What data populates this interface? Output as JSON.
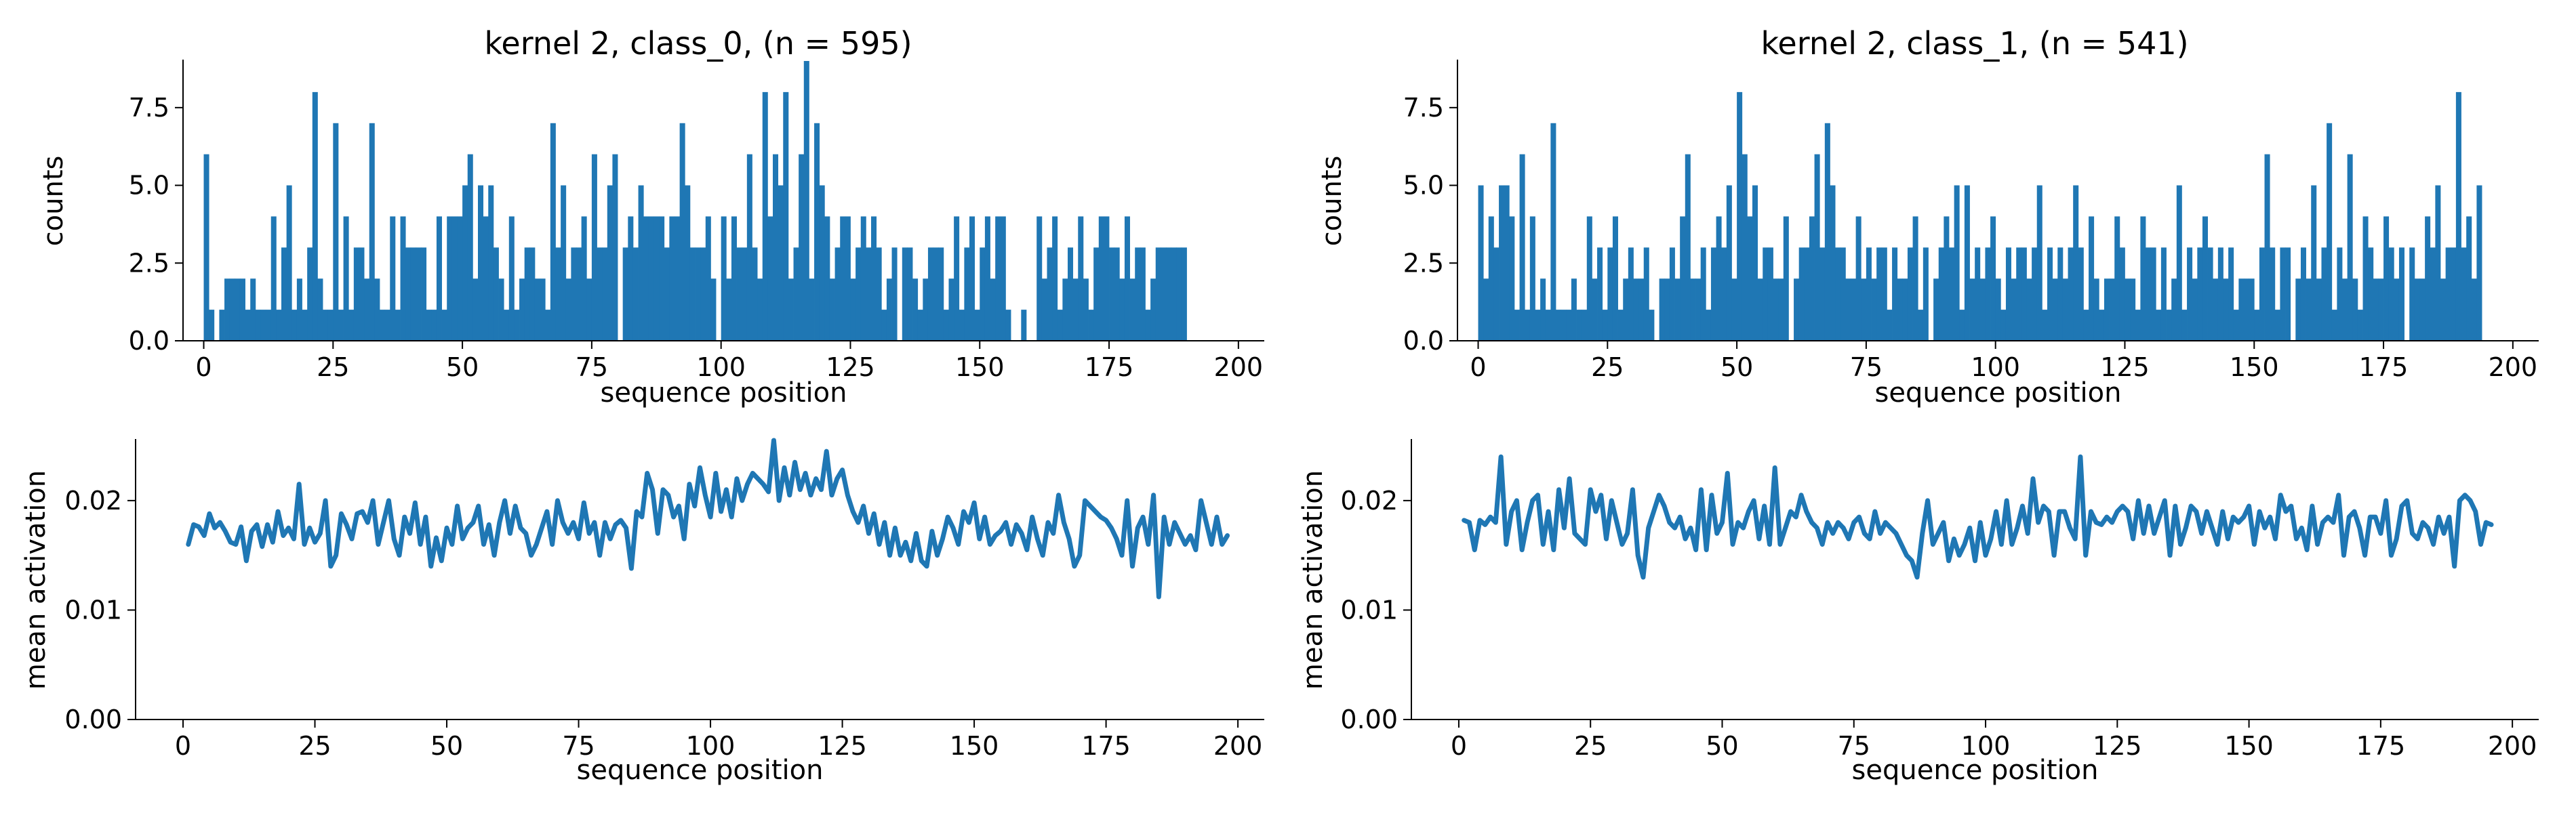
{
  "chart_data": [
    {
      "id": "hist0",
      "type": "bar",
      "title": "kernel 2, class_0, (n = 595)",
      "xlabel": "sequence position",
      "ylabel": "counts",
      "xlim": [
        -4,
        205
      ],
      "ylim": [
        0,
        9
      ],
      "xticks": [
        0,
        25,
        50,
        75,
        100,
        125,
        150,
        175,
        200
      ],
      "yticks": [
        0.0,
        2.5,
        5.0,
        7.5
      ],
      "xtick_labels": [
        "0",
        "25",
        "50",
        "75",
        "100",
        "125",
        "150",
        "175",
        "200"
      ],
      "ytick_labels": [
        "0.0",
        "2.5",
        "5.0",
        "7.5"
      ],
      "bar_color": "#1f77b4",
      "x_start": 0,
      "bin_width": 1,
      "values": [
        6,
        1,
        0,
        1,
        2,
        2,
        2,
        2,
        1,
        2,
        1,
        1,
        1,
        4,
        1,
        3,
        5,
        1,
        2,
        1,
        3,
        8,
        2,
        1,
        1,
        7,
        1,
        4,
        1,
        3,
        3,
        2,
        7,
        2,
        1,
        1,
        4,
        1,
        4,
        3,
        3,
        3,
        3,
        1,
        1,
        4,
        1,
        4,
        4,
        4,
        5,
        6,
        2,
        5,
        4,
        5,
        3,
        2,
        1,
        4,
        1,
        2,
        3,
        3,
        2,
        2,
        1,
        7,
        3,
        5,
        2,
        3,
        3,
        4,
        2,
        6,
        3,
        3,
        5,
        6,
        0,
        3,
        4,
        3,
        5,
        4,
        4,
        4,
        4,
        3,
        4,
        4,
        7,
        5,
        3,
        3,
        3,
        4,
        2,
        0,
        4,
        2,
        4,
        3,
        3,
        6,
        3,
        2,
        8,
        4,
        6,
        5,
        8,
        2,
        3,
        6,
        9,
        2,
        7,
        5,
        4,
        2,
        3,
        4,
        4,
        2,
        3,
        4,
        3,
        4,
        3,
        1,
        2,
        3,
        0,
        3,
        3,
        2,
        1,
        2,
        3,
        3,
        3,
        1,
        2,
        4,
        1,
        3,
        4,
        1,
        3,
        4,
        2,
        4,
        4,
        1,
        0,
        0,
        1,
        0,
        0,
        4,
        2,
        3,
        4,
        1,
        2,
        3,
        2,
        4,
        2,
        1,
        3,
        4,
        4,
        3,
        3,
        2,
        4,
        2,
        3,
        3,
        1,
        2,
        3,
        3,
        3,
        3,
        3,
        3
      ]
    },
    {
      "id": "hist1",
      "type": "bar",
      "title": "kernel 2, class_1, (n = 541)",
      "xlabel": "sequence position",
      "ylabel": "counts",
      "xlim": [
        -4,
        205
      ],
      "ylim": [
        0,
        9
      ],
      "xticks": [
        0,
        25,
        50,
        75,
        100,
        125,
        150,
        175,
        200
      ],
      "yticks": [
        0.0,
        2.5,
        5.0,
        7.5
      ],
      "xtick_labels": [
        "0",
        "25",
        "50",
        "75",
        "100",
        "125",
        "150",
        "175",
        "200"
      ],
      "ytick_labels": [
        "0.0",
        "2.5",
        "5.0",
        "7.5"
      ],
      "bar_color": "#1f77b4",
      "x_start": 0,
      "bin_width": 1,
      "values": [
        5,
        2,
        4,
        3,
        5,
        5,
        4,
        1,
        6,
        1,
        4,
        1,
        2,
        1,
        7,
        1,
        1,
        1,
        2,
        1,
        1,
        4,
        2,
        3,
        1,
        3,
        4,
        1,
        2,
        3,
        2,
        2,
        3,
        1,
        0,
        2,
        2,
        3,
        2,
        4,
        6,
        2,
        2,
        3,
        1,
        3,
        4,
        3,
        5,
        2,
        8,
        6,
        4,
        5,
        2,
        3,
        3,
        2,
        2,
        4,
        0,
        2,
        3,
        3,
        4,
        6,
        3,
        7,
        5,
        3,
        3,
        2,
        2,
        4,
        2,
        3,
        2,
        3,
        3,
        1,
        3,
        2,
        2,
        3,
        4,
        1,
        3,
        0,
        2,
        3,
        4,
        3,
        5,
        1,
        5,
        2,
        3,
        2,
        3,
        4,
        2,
        1,
        3,
        2,
        3,
        3,
        2,
        3,
        5,
        1,
        3,
        2,
        3,
        2,
        3,
        5,
        3,
        1,
        4,
        2,
        1,
        2,
        2,
        4,
        3,
        2,
        2,
        1,
        4,
        3,
        3,
        1,
        3,
        1,
        2,
        5,
        1,
        3,
        2,
        3,
        4,
        3,
        2,
        3,
        2,
        3,
        1,
        2,
        2,
        2,
        1,
        3,
        6,
        3,
        1,
        3,
        3,
        0,
        2,
        3,
        2,
        5,
        2,
        3,
        7,
        1,
        3,
        2,
        6,
        2,
        1,
        4,
        3,
        2,
        2,
        4,
        3,
        2,
        3,
        0,
        3,
        2,
        2,
        4,
        3,
        5,
        2,
        3,
        3,
        8,
        3,
        4,
        2,
        5
      ]
    },
    {
      "id": "line0",
      "type": "line",
      "xlabel": "sequence position",
      "ylabel": "mean activation",
      "xlim": [
        -9,
        205
      ],
      "ylim": [
        0,
        0.0255
      ],
      "xticks": [
        0,
        25,
        50,
        75,
        100,
        125,
        150,
        175,
        200
      ],
      "yticks": [
        0.0,
        0.01,
        0.02
      ],
      "xtick_labels": [
        "0",
        "25",
        "50",
        "75",
        "100",
        "125",
        "150",
        "175",
        "200"
      ],
      "ytick_labels": [
        "0.00",
        "0.01",
        "0.02"
      ],
      "line_color": "#1f77b4",
      "x_start": 1,
      "values": [
        0.016,
        0.0178,
        0.0176,
        0.0168,
        0.0188,
        0.0175,
        0.018,
        0.0172,
        0.0162,
        0.016,
        0.0176,
        0.0145,
        0.0172,
        0.0178,
        0.0158,
        0.0178,
        0.0162,
        0.019,
        0.0168,
        0.0175,
        0.0165,
        0.0215,
        0.016,
        0.0175,
        0.0162,
        0.017,
        0.02,
        0.014,
        0.015,
        0.0188,
        0.0178,
        0.0165,
        0.0188,
        0.019,
        0.018,
        0.02,
        0.016,
        0.018,
        0.02,
        0.0165,
        0.015,
        0.0185,
        0.017,
        0.0198,
        0.016,
        0.0185,
        0.014,
        0.0166,
        0.0145,
        0.0175,
        0.016,
        0.0195,
        0.0165,
        0.0175,
        0.018,
        0.0195,
        0.016,
        0.0178,
        0.015,
        0.018,
        0.02,
        0.017,
        0.0195,
        0.0175,
        0.017,
        0.015,
        0.016,
        0.0175,
        0.019,
        0.016,
        0.02,
        0.018,
        0.017,
        0.018,
        0.0165,
        0.0198,
        0.017,
        0.018,
        0.015,
        0.018,
        0.0165,
        0.0178,
        0.0182,
        0.0175,
        0.0138,
        0.019,
        0.0185,
        0.0225,
        0.021,
        0.017,
        0.021,
        0.0205,
        0.0185,
        0.0195,
        0.0165,
        0.0215,
        0.0195,
        0.023,
        0.0205,
        0.0185,
        0.0225,
        0.019,
        0.021,
        0.0185,
        0.022,
        0.02,
        0.0215,
        0.0225,
        0.022,
        0.0215,
        0.0208,
        0.0255,
        0.02,
        0.023,
        0.0205,
        0.0235,
        0.021,
        0.0225,
        0.0205,
        0.022,
        0.021,
        0.0245,
        0.0205,
        0.022,
        0.0228,
        0.0205,
        0.019,
        0.018,
        0.0195,
        0.017,
        0.0188,
        0.016,
        0.018,
        0.015,
        0.0175,
        0.015,
        0.0162,
        0.0145,
        0.017,
        0.0145,
        0.014,
        0.0172,
        0.015,
        0.0165,
        0.0185,
        0.0175,
        0.016,
        0.019,
        0.018,
        0.0198,
        0.0165,
        0.0185,
        0.016,
        0.0168,
        0.0172,
        0.018,
        0.016,
        0.0178,
        0.017,
        0.0155,
        0.0185,
        0.0165,
        0.015,
        0.018,
        0.017,
        0.0205,
        0.018,
        0.0165,
        0.014,
        0.015,
        0.02,
        0.0195,
        0.019,
        0.0185,
        0.0182,
        0.0175,
        0.0165,
        0.015,
        0.02,
        0.014,
        0.0175,
        0.0185,
        0.016,
        0.0205,
        0.0112,
        0.0185,
        0.016,
        0.018,
        0.017,
        0.016,
        0.0168,
        0.0155,
        0.02,
        0.018,
        0.016,
        0.0185,
        0.016,
        0.0168
      ]
    },
    {
      "id": "line1",
      "type": "line",
      "xlabel": "sequence position",
      "ylabel": "mean activation",
      "xlim": [
        -9,
        205
      ],
      "ylim": [
        0,
        0.0255
      ],
      "xticks": [
        0,
        25,
        50,
        75,
        100,
        125,
        150,
        175,
        200
      ],
      "yticks": [
        0.0,
        0.01,
        0.02
      ],
      "xtick_labels": [
        "0",
        "25",
        "50",
        "75",
        "100",
        "125",
        "150",
        "175",
        "200"
      ],
      "ytick_labels": [
        "0.00",
        "0.01",
        "0.02"
      ],
      "line_color": "#1f77b4",
      "x_start": 1,
      "values": [
        0.0182,
        0.018,
        0.0155,
        0.0182,
        0.0178,
        0.0185,
        0.018,
        0.024,
        0.016,
        0.019,
        0.02,
        0.0155,
        0.018,
        0.02,
        0.0205,
        0.016,
        0.019,
        0.0155,
        0.021,
        0.0175,
        0.022,
        0.017,
        0.0165,
        0.016,
        0.021,
        0.019,
        0.0205,
        0.0165,
        0.02,
        0.018,
        0.016,
        0.017,
        0.021,
        0.015,
        0.013,
        0.0175,
        0.019,
        0.0205,
        0.0195,
        0.018,
        0.0175,
        0.0185,
        0.0165,
        0.0175,
        0.0155,
        0.021,
        0.0155,
        0.0205,
        0.017,
        0.018,
        0.0225,
        0.016,
        0.018,
        0.0175,
        0.019,
        0.02,
        0.0165,
        0.0195,
        0.016,
        0.023,
        0.016,
        0.0175,
        0.019,
        0.0185,
        0.0205,
        0.019,
        0.018,
        0.0175,
        0.016,
        0.018,
        0.017,
        0.018,
        0.0175,
        0.0165,
        0.018,
        0.0185,
        0.017,
        0.0165,
        0.019,
        0.017,
        0.018,
        0.0175,
        0.017,
        0.016,
        0.015,
        0.0145,
        0.013,
        0.017,
        0.02,
        0.016,
        0.017,
        0.018,
        0.0145,
        0.0165,
        0.015,
        0.016,
        0.0175,
        0.0145,
        0.018,
        0.015,
        0.0165,
        0.019,
        0.016,
        0.02,
        0.016,
        0.0175,
        0.0195,
        0.017,
        0.022,
        0.018,
        0.0195,
        0.019,
        0.015,
        0.019,
        0.019,
        0.0175,
        0.0165,
        0.024,
        0.015,
        0.019,
        0.018,
        0.0178,
        0.0185,
        0.018,
        0.019,
        0.0195,
        0.019,
        0.0165,
        0.02,
        0.017,
        0.0195,
        0.017,
        0.0185,
        0.02,
        0.015,
        0.0195,
        0.016,
        0.0175,
        0.0195,
        0.019,
        0.017,
        0.019,
        0.0175,
        0.016,
        0.019,
        0.0165,
        0.0185,
        0.018,
        0.0185,
        0.0195,
        0.016,
        0.019,
        0.0175,
        0.0185,
        0.0165,
        0.0205,
        0.019,
        0.0195,
        0.0165,
        0.0175,
        0.0155,
        0.0195,
        0.016,
        0.018,
        0.0185,
        0.018,
        0.0205,
        0.015,
        0.0185,
        0.019,
        0.0175,
        0.015,
        0.0185,
        0.0185,
        0.017,
        0.02,
        0.015,
        0.0165,
        0.0195,
        0.02,
        0.017,
        0.0165,
        0.018,
        0.0175,
        0.016,
        0.0185,
        0.017,
        0.0185,
        0.014,
        0.02,
        0.0205,
        0.02,
        0.019,
        0.016,
        0.018,
        0.0178
      ]
    }
  ]
}
